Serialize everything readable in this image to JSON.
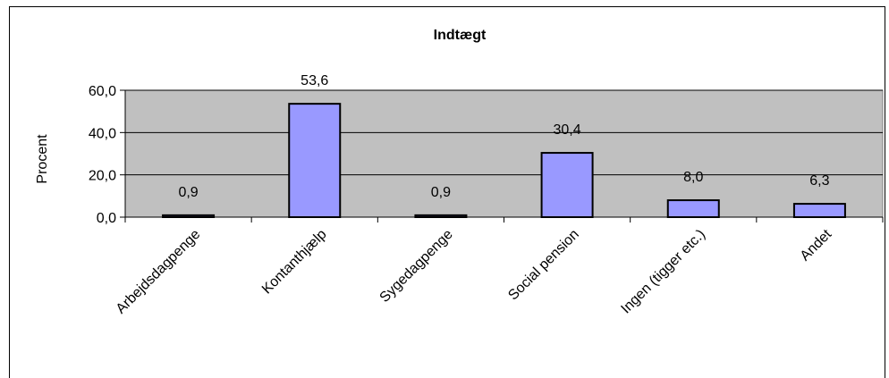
{
  "chart_data": {
    "type": "bar",
    "title": "Indtægt",
    "xlabel": "",
    "ylabel": "Procent",
    "categories": [
      "Arbejdsdagpenge",
      "Kontanthjælp",
      "Sygedagpenge",
      "Social pension",
      "Ingen (tigger etc.)",
      "Andet"
    ],
    "values": [
      0.9,
      53.6,
      0.9,
      30.4,
      8.0,
      6.3
    ],
    "data_labels": [
      "0,9",
      "53,6",
      "0,9",
      "30,4",
      "8,0",
      "6,3"
    ],
    "ylim": [
      0,
      60
    ],
    "yticks": [
      0,
      20,
      40,
      60
    ],
    "ytick_labels": [
      "0,0",
      "20,0",
      "40,0",
      "60,0"
    ],
    "grid": true,
    "legend": "none",
    "colors": {
      "bar_fill": "#9999ff",
      "bar_stroke": "#000000",
      "plot_background": "#c0c0c0",
      "gridline": "#000000"
    }
  }
}
